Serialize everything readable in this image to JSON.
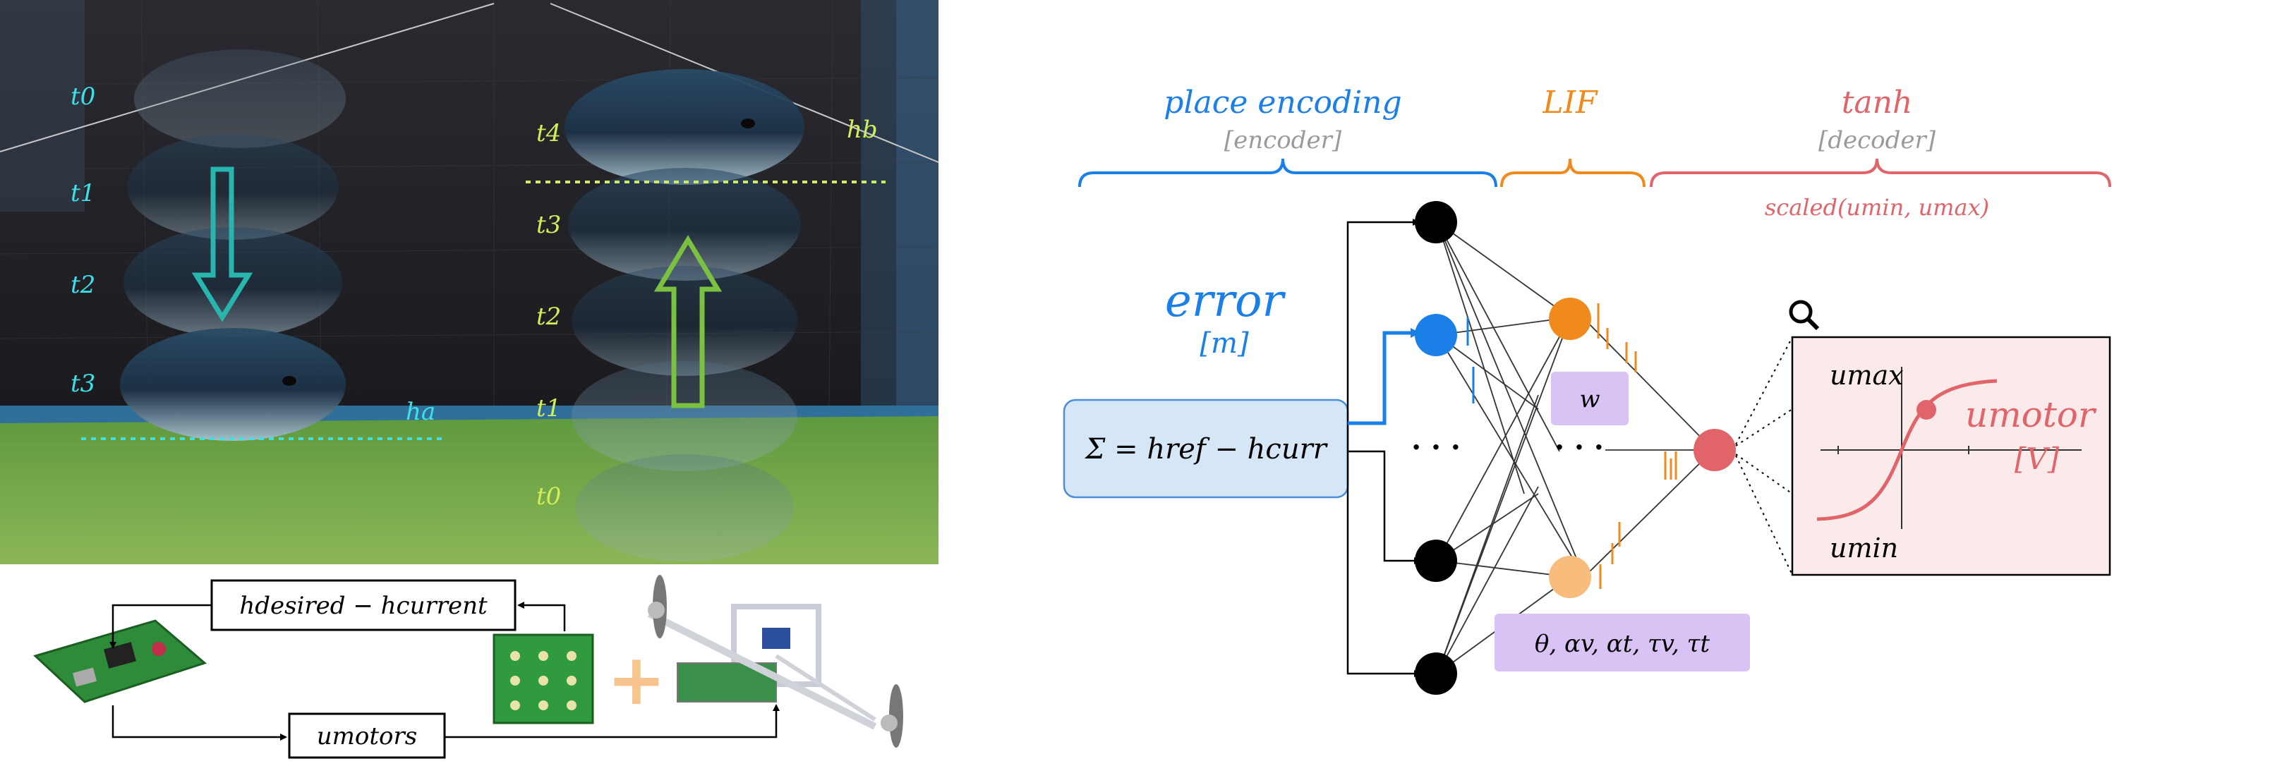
{
  "colors": {
    "encoder_blue": "#1a7fe6",
    "lif_orange": "#f08a1c",
    "decoder_red": "#e0646a",
    "wall_dark": "#1c1c22",
    "floor_green": "#7da84a",
    "time_cyan": "#3ee0e8",
    "time_yellow": "#cfee5a",
    "error_box_fill": "#d5e6f7",
    "param_fill": "#d9c3f5",
    "plot_fill": "#fbeaea"
  },
  "photo": {
    "left_labels": [
      "t0",
      "t1",
      "t2",
      "t3"
    ],
    "right_labels": [
      "t4",
      "t3",
      "t2",
      "t1",
      "t0"
    ],
    "ha_label": "ha",
    "hb_label": "hb"
  },
  "hardware": {
    "feedback_label": "hdesired − hcurrent",
    "motors_label": "umotors",
    "plus_symbol": "+"
  },
  "network": {
    "place_encoding": "place encoding",
    "encoder": "[encoder]",
    "lif": "LIF",
    "tanh": "tanh",
    "decoder": "[decoder]",
    "scaled": "scaled(umin, umax)",
    "error": "error",
    "error_unit": "[m]",
    "sigma_eq": "Σ = href − hcurr",
    "dots_input": "· · ·",
    "dots_hidden": "· · ·",
    "weight_label": "w",
    "params_label": "θ, αv, αt, τv, τt",
    "magnifier": "search-icon"
  },
  "plot": {
    "umax": "umax",
    "umin": "umin",
    "umotor": "umotor",
    "unit": "[V]"
  }
}
